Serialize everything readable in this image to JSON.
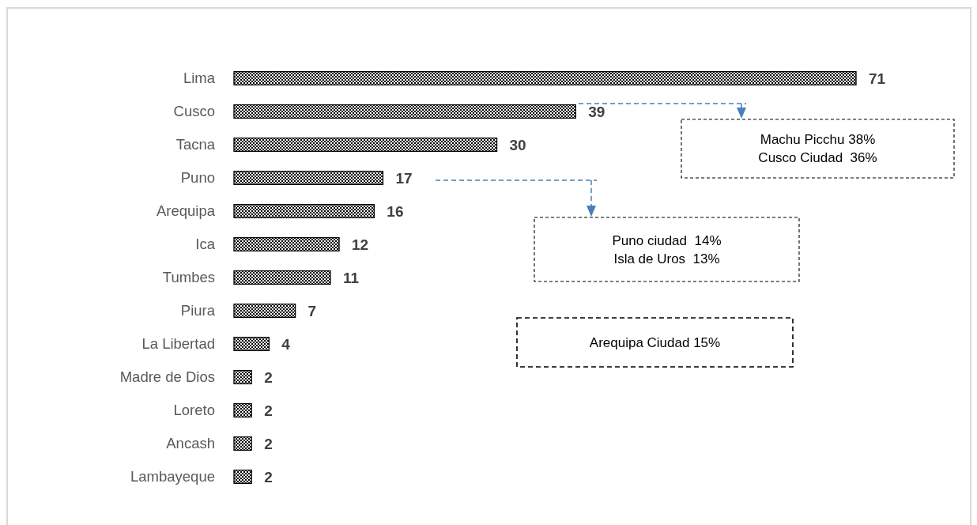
{
  "chart_data": {
    "type": "bar",
    "orientation": "horizontal",
    "categories": [
      "Lima",
      "Cusco",
      "Tacna",
      "Puno",
      "Arequipa",
      "Ica",
      "Tumbes",
      "Piura",
      "La Libertad",
      "Madre de Dios",
      "Loreto",
      "Ancash",
      "Lambayeque"
    ],
    "values": [
      71,
      39,
      30,
      17,
      16,
      12,
      11,
      7,
      4,
      2,
      2,
      2,
      2
    ],
    "color": "#000000",
    "xlim": [
      0,
      71
    ],
    "tick_labels": "y",
    "data_labels": true,
    "annotations": [
      "Machu Picchu 38%\nCusco Ciudad  36%",
      "Puno ciudad  14%\nIsla de Uros  13%",
      "Arequipa Ciudad 15%"
    ]
  }
}
